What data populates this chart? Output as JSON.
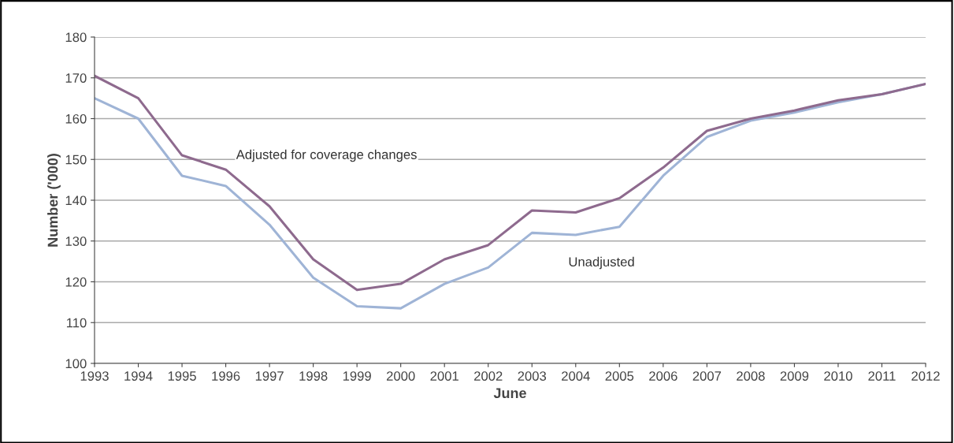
{
  "chart_data": {
    "type": "line",
    "xlabel": "June",
    "ylabel": "Number ('000)",
    "x": [
      1993,
      1994,
      1995,
      1996,
      1997,
      1998,
      1999,
      2000,
      2001,
      2002,
      2003,
      2004,
      2005,
      2006,
      2007,
      2008,
      2009,
      2010,
      2011,
      2012
    ],
    "series": [
      {
        "name": "Unadjusted",
        "color": "#9fb4d6",
        "values": [
          165,
          160,
          146,
          143.5,
          134,
          121,
          114,
          113.5,
          119.5,
          123.5,
          132,
          131.5,
          133.5,
          146,
          155.5,
          159.5,
          161.5,
          164,
          166,
          168.5
        ]
      },
      {
        "name": "Adjusted for coverage changes",
        "color": "#8e6a8e",
        "values": [
          170.5,
          165,
          151,
          147.5,
          138.5,
          125.5,
          118,
          119.5,
          125.5,
          129,
          137.5,
          137,
          140.5,
          148,
          157,
          160,
          162,
          164.5,
          166,
          168.5
        ]
      }
    ],
    "xlim": [
      1993,
      2012
    ],
    "xticks": [
      1993,
      1994,
      1995,
      1996,
      1997,
      1998,
      1999,
      2000,
      2001,
      2002,
      2003,
      2004,
      2005,
      2006,
      2007,
      2008,
      2009,
      2010,
      2011,
      2012
    ],
    "ylim": [
      100,
      180
    ],
    "yticks": [
      100,
      110,
      120,
      130,
      140,
      150,
      160,
      170,
      180
    ],
    "grid": "y",
    "marker": "none",
    "line_style": "solid"
  }
}
